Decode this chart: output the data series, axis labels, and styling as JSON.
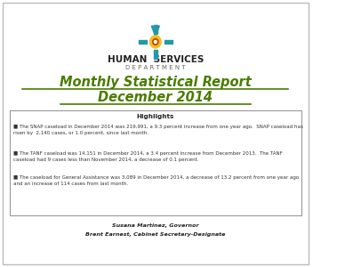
{
  "title_line1": "Monthly Statistical Report",
  "title_line2": "December 2014",
  "title_color": "#4a7c00",
  "org_name": "HUMAN  SERVICES",
  "org_dept": "D E P A R T M E N T",
  "highlights_title": "Highlights",
  "bullet1": "■ The SNAP caseload in December 2014 was 219,991, a 9.3 percent increase from one year ago.  SNAP caseload has\nrisen by  2,140 cases, or 1.0 percent, since last month.",
  "bullet2": "■ The TANF caseload was 14,151 in December 2014, a 3.4 percent increase from December 2013.  The TANF\ncaseload had 9 cases less than November 2014, a decrease of 0.1 percent.",
  "bullet3": "■ The caseload for General Assistance was 3,089 in December 2014, a decrease of 13.2 percent from one year ago\nand an increase of 114 cases from last month.",
  "footer1": "Susana Martinez, Governor",
  "footer2": "Brent Earnest, Cabinet Secretary-Designate",
  "bg_color": "#ffffff",
  "border_color": "#888888",
  "text_color": "#333333"
}
